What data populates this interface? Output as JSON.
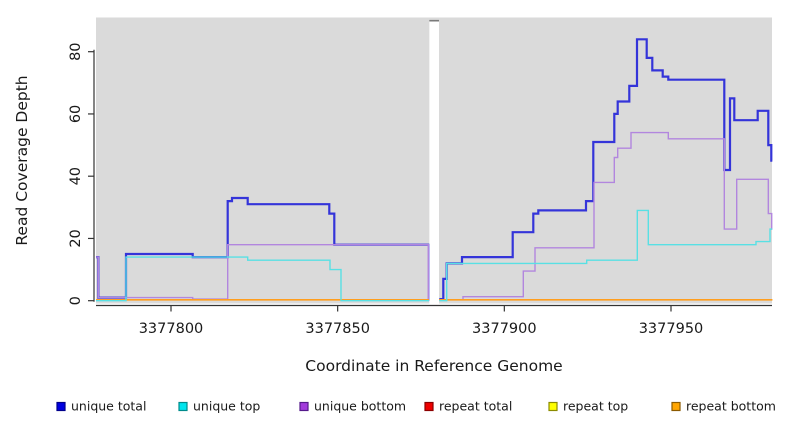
{
  "chart_data": {
    "type": "line",
    "subtype": "step",
    "title": "",
    "xlabel": "Coordinate in Reference Genome",
    "ylabel": "Read Coverage Depth",
    "x_ticks": [
      {
        "value": 3377800,
        "label": "3377800"
      },
      {
        "value": 3377850,
        "label": "3377850"
      },
      {
        "value": 3377900,
        "label": "3377900"
      },
      {
        "value": 3377950,
        "label": "3377950"
      }
    ],
    "y_ticks": [
      {
        "value": 0,
        "label": "0"
      },
      {
        "value": 20,
        "label": "20"
      },
      {
        "value": 40,
        "label": "40"
      },
      {
        "value": 60,
        "label": "60"
      },
      {
        "value": 80,
        "label": "80"
      }
    ],
    "xlim": [
      3377777.5,
      3377980.4
    ],
    "ylim": [
      0,
      91
    ],
    "grid": false,
    "panel_bg": "#DADADA",
    "axis_color": "#333333",
    "gap_region": {
      "x1": 3377877.5,
      "x2": 3377880.4,
      "cap_color": "#7a7a7a"
    },
    "series": [
      {
        "name": "unique total",
        "color": "#3434d9",
        "width": 2.2,
        "blocks": [
          [
            [
              3377777.5,
              14
            ],
            [
              3377778.2,
              1
            ],
            [
              3377786.5,
              15
            ],
            [
              3377806.5,
              14
            ],
            [
              3377817,
              32
            ],
            [
              3377818.3,
              33
            ],
            [
              3377823,
              31
            ],
            [
              3377847.5,
              28
            ],
            [
              3377849,
              18
            ],
            [
              3377877.4,
              0
            ]
          ],
          [
            [
              3377880.5,
              0.5
            ],
            [
              3377881.7,
              7
            ],
            [
              3377882.7,
              12
            ],
            [
              3377887.3,
              14
            ],
            [
              3377902.5,
              22
            ],
            [
              3377908.7,
              28
            ],
            [
              3377910.2,
              29
            ],
            [
              3377924.5,
              32
            ],
            [
              3377926.7,
              51
            ],
            [
              3377933,
              60
            ],
            [
              3377934,
              64
            ],
            [
              3377937.5,
              69
            ],
            [
              3377939.8,
              84
            ],
            [
              3377942.7,
              78
            ],
            [
              3377944.4,
              74
            ],
            [
              3377947.5,
              72
            ],
            [
              3377949.2,
              71
            ],
            [
              3377966,
              42
            ],
            [
              3377967.7,
              65
            ],
            [
              3377969,
              58
            ],
            [
              3377976,
              61
            ],
            [
              3377979.2,
              50
            ],
            [
              3377980.1,
              45
            ],
            [
              3377980.4,
              45
            ]
          ]
        ]
      },
      {
        "name": "unique bottom",
        "color": "#b286de",
        "width": 1.4,
        "blocks": [
          [
            [
              3377777.5,
              14
            ],
            [
              3377778.2,
              1
            ],
            [
              3377806.5,
              0.5
            ],
            [
              3377817,
              18
            ],
            [
              3377877.2,
              0
            ]
          ],
          [
            [
              3377880.5,
              0.3
            ],
            [
              3377887.6,
              1.3
            ],
            [
              3377905.7,
              9.5
            ],
            [
              3377909.2,
              17
            ],
            [
              3377926.9,
              38
            ],
            [
              3377933,
              46
            ],
            [
              3377934,
              49
            ],
            [
              3377938,
              54
            ],
            [
              3377949.2,
              52
            ],
            [
              3377966,
              23
            ],
            [
              3377969.7,
              39
            ],
            [
              3377979.2,
              28
            ],
            [
              3377980.2,
              23
            ],
            [
              3377980.4,
              23
            ]
          ]
        ]
      },
      {
        "name": "repeat total",
        "color": "#dc2828",
        "width": 1.2,
        "blocks": [
          [
            [
              3377777.5,
              0.3
            ],
            [
              3377877.4,
              0.3
            ]
          ],
          [
            [
              3377880.5,
              0.3
            ],
            [
              3377980.4,
              0.3
            ]
          ]
        ]
      },
      {
        "name": "repeat top",
        "color": "#f2e520",
        "width": 1.2,
        "blocks": [
          [
            [
              3377777.5,
              0.3
            ],
            [
              3377877.4,
              0.3
            ]
          ],
          [
            [
              3377880.5,
              0.3
            ],
            [
              3377980.4,
              0.3
            ]
          ]
        ]
      },
      {
        "name": "repeat bottom",
        "color": "#ff9e1e",
        "width": 1.6,
        "blocks": [
          [
            [
              3377777.5,
              0.3
            ],
            [
              3377877.4,
              0.3
            ]
          ],
          [
            [
              3377880.5,
              0.3
            ],
            [
              3377980.4,
              0.3
            ]
          ]
        ]
      },
      {
        "name": "unique top",
        "color": "#58e0e4",
        "width": 1.4,
        "blocks": [
          [
            [
              3377777.5,
              0
            ],
            [
              3377786.5,
              14
            ],
            [
              3377823,
              13
            ],
            [
              3377847.7,
              10
            ],
            [
              3377851,
              0
            ],
            [
              3377877.4,
              0
            ]
          ],
          [
            [
              3377880.5,
              0
            ],
            [
              3377882.7,
              12
            ],
            [
              3377924.7,
              13
            ],
            [
              3377939.9,
              29
            ],
            [
              3377943.2,
              18
            ],
            [
              3377975.5,
              19
            ],
            [
              3377979.7,
              23
            ],
            [
              3377980.4,
              23
            ]
          ]
        ]
      }
    ],
    "legend": {
      "position": "bottom",
      "items": [
        {
          "label": "unique total",
          "fill": "#0000e0",
          "border": "#00008b"
        },
        {
          "label": "unique top",
          "fill": "#00e5ee",
          "border": "#008b8b"
        },
        {
          "label": "unique bottom",
          "fill": "#a23bdb",
          "border": "#551a8b"
        },
        {
          "label": "repeat total",
          "fill": "#ee0000",
          "border": "#8b0000"
        },
        {
          "label": "repeat top",
          "fill": "#ffff00",
          "border": "#8b8b00"
        },
        {
          "label": "repeat bottom",
          "fill": "#ffa500",
          "border": "#8b5a00"
        }
      ]
    }
  }
}
